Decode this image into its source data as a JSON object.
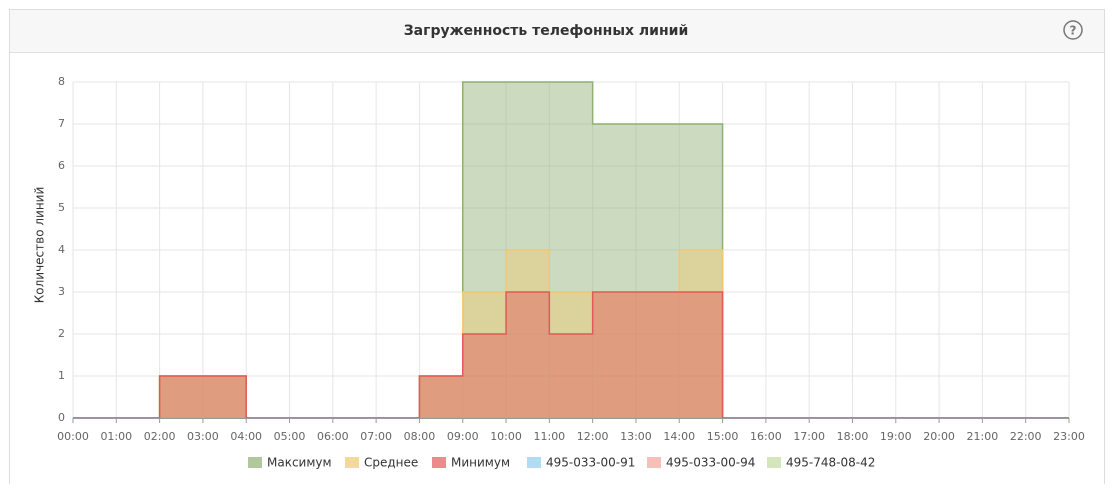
{
  "chart_data": {
    "type": "step-area",
    "title": "Загруженность телефонных линий",
    "y_label": "Количество линий",
    "categories": [
      "00:00",
      "01:00",
      "02:00",
      "03:00",
      "04:00",
      "05:00",
      "06:00",
      "07:00",
      "08:00",
      "09:00",
      "10:00",
      "11:00",
      "12:00",
      "13:00",
      "14:00",
      "15:00",
      "16:00",
      "17:00",
      "18:00",
      "19:00",
      "20:00",
      "21:00",
      "22:00",
      "23:00"
    ],
    "ylim": [
      0,
      8
    ],
    "yticks": [
      0,
      1,
      2,
      3,
      4,
      5,
      6,
      7,
      8
    ],
    "grid": true,
    "series": [
      {
        "name": "Максимум",
        "color": "#8fb070",
        "values": [
          0,
          0,
          1,
          1,
          0,
          0,
          0,
          0,
          1,
          8,
          8,
          8,
          7,
          7,
          7,
          0,
          0,
          0,
          0,
          0,
          0,
          0,
          0,
          0
        ]
      },
      {
        "name": "Среднее",
        "color": "#f0c870",
        "values": [
          0,
          0,
          1,
          1,
          0,
          0,
          0,
          0,
          1,
          3,
          4,
          3,
          3,
          3,
          4,
          0,
          0,
          0,
          0,
          0,
          0,
          0,
          0,
          0
        ]
      },
      {
        "name": "Минимум",
        "color": "#e25a5a",
        "values": [
          0,
          0,
          1,
          1,
          0,
          0,
          0,
          0,
          1,
          2,
          3,
          2,
          3,
          3,
          3,
          0,
          0,
          0,
          0,
          0,
          0,
          0,
          0,
          0
        ]
      },
      {
        "name": "495-033-00-91",
        "color": "#8ecfef",
        "values": [
          null,
          null,
          null,
          null,
          null,
          null,
          null,
          null,
          null,
          null,
          null,
          null,
          null,
          null,
          null,
          null,
          null,
          null,
          null,
          null,
          null,
          null,
          null,
          null
        ]
      },
      {
        "name": "495-033-00-94",
        "color": "#f2a49a",
        "values": [
          null,
          null,
          null,
          null,
          null,
          null,
          null,
          null,
          null,
          null,
          null,
          null,
          null,
          null,
          null,
          null,
          null,
          null,
          null,
          null,
          null,
          null,
          null,
          null
        ]
      },
      {
        "name": "495-748-08-42",
        "color": "#c3dc9c",
        "values": [
          null,
          null,
          null,
          null,
          null,
          null,
          null,
          null,
          null,
          null,
          null,
          null,
          null,
          null,
          null,
          null,
          null,
          null,
          null,
          null,
          null,
          null,
          null,
          null
        ]
      }
    ]
  }
}
